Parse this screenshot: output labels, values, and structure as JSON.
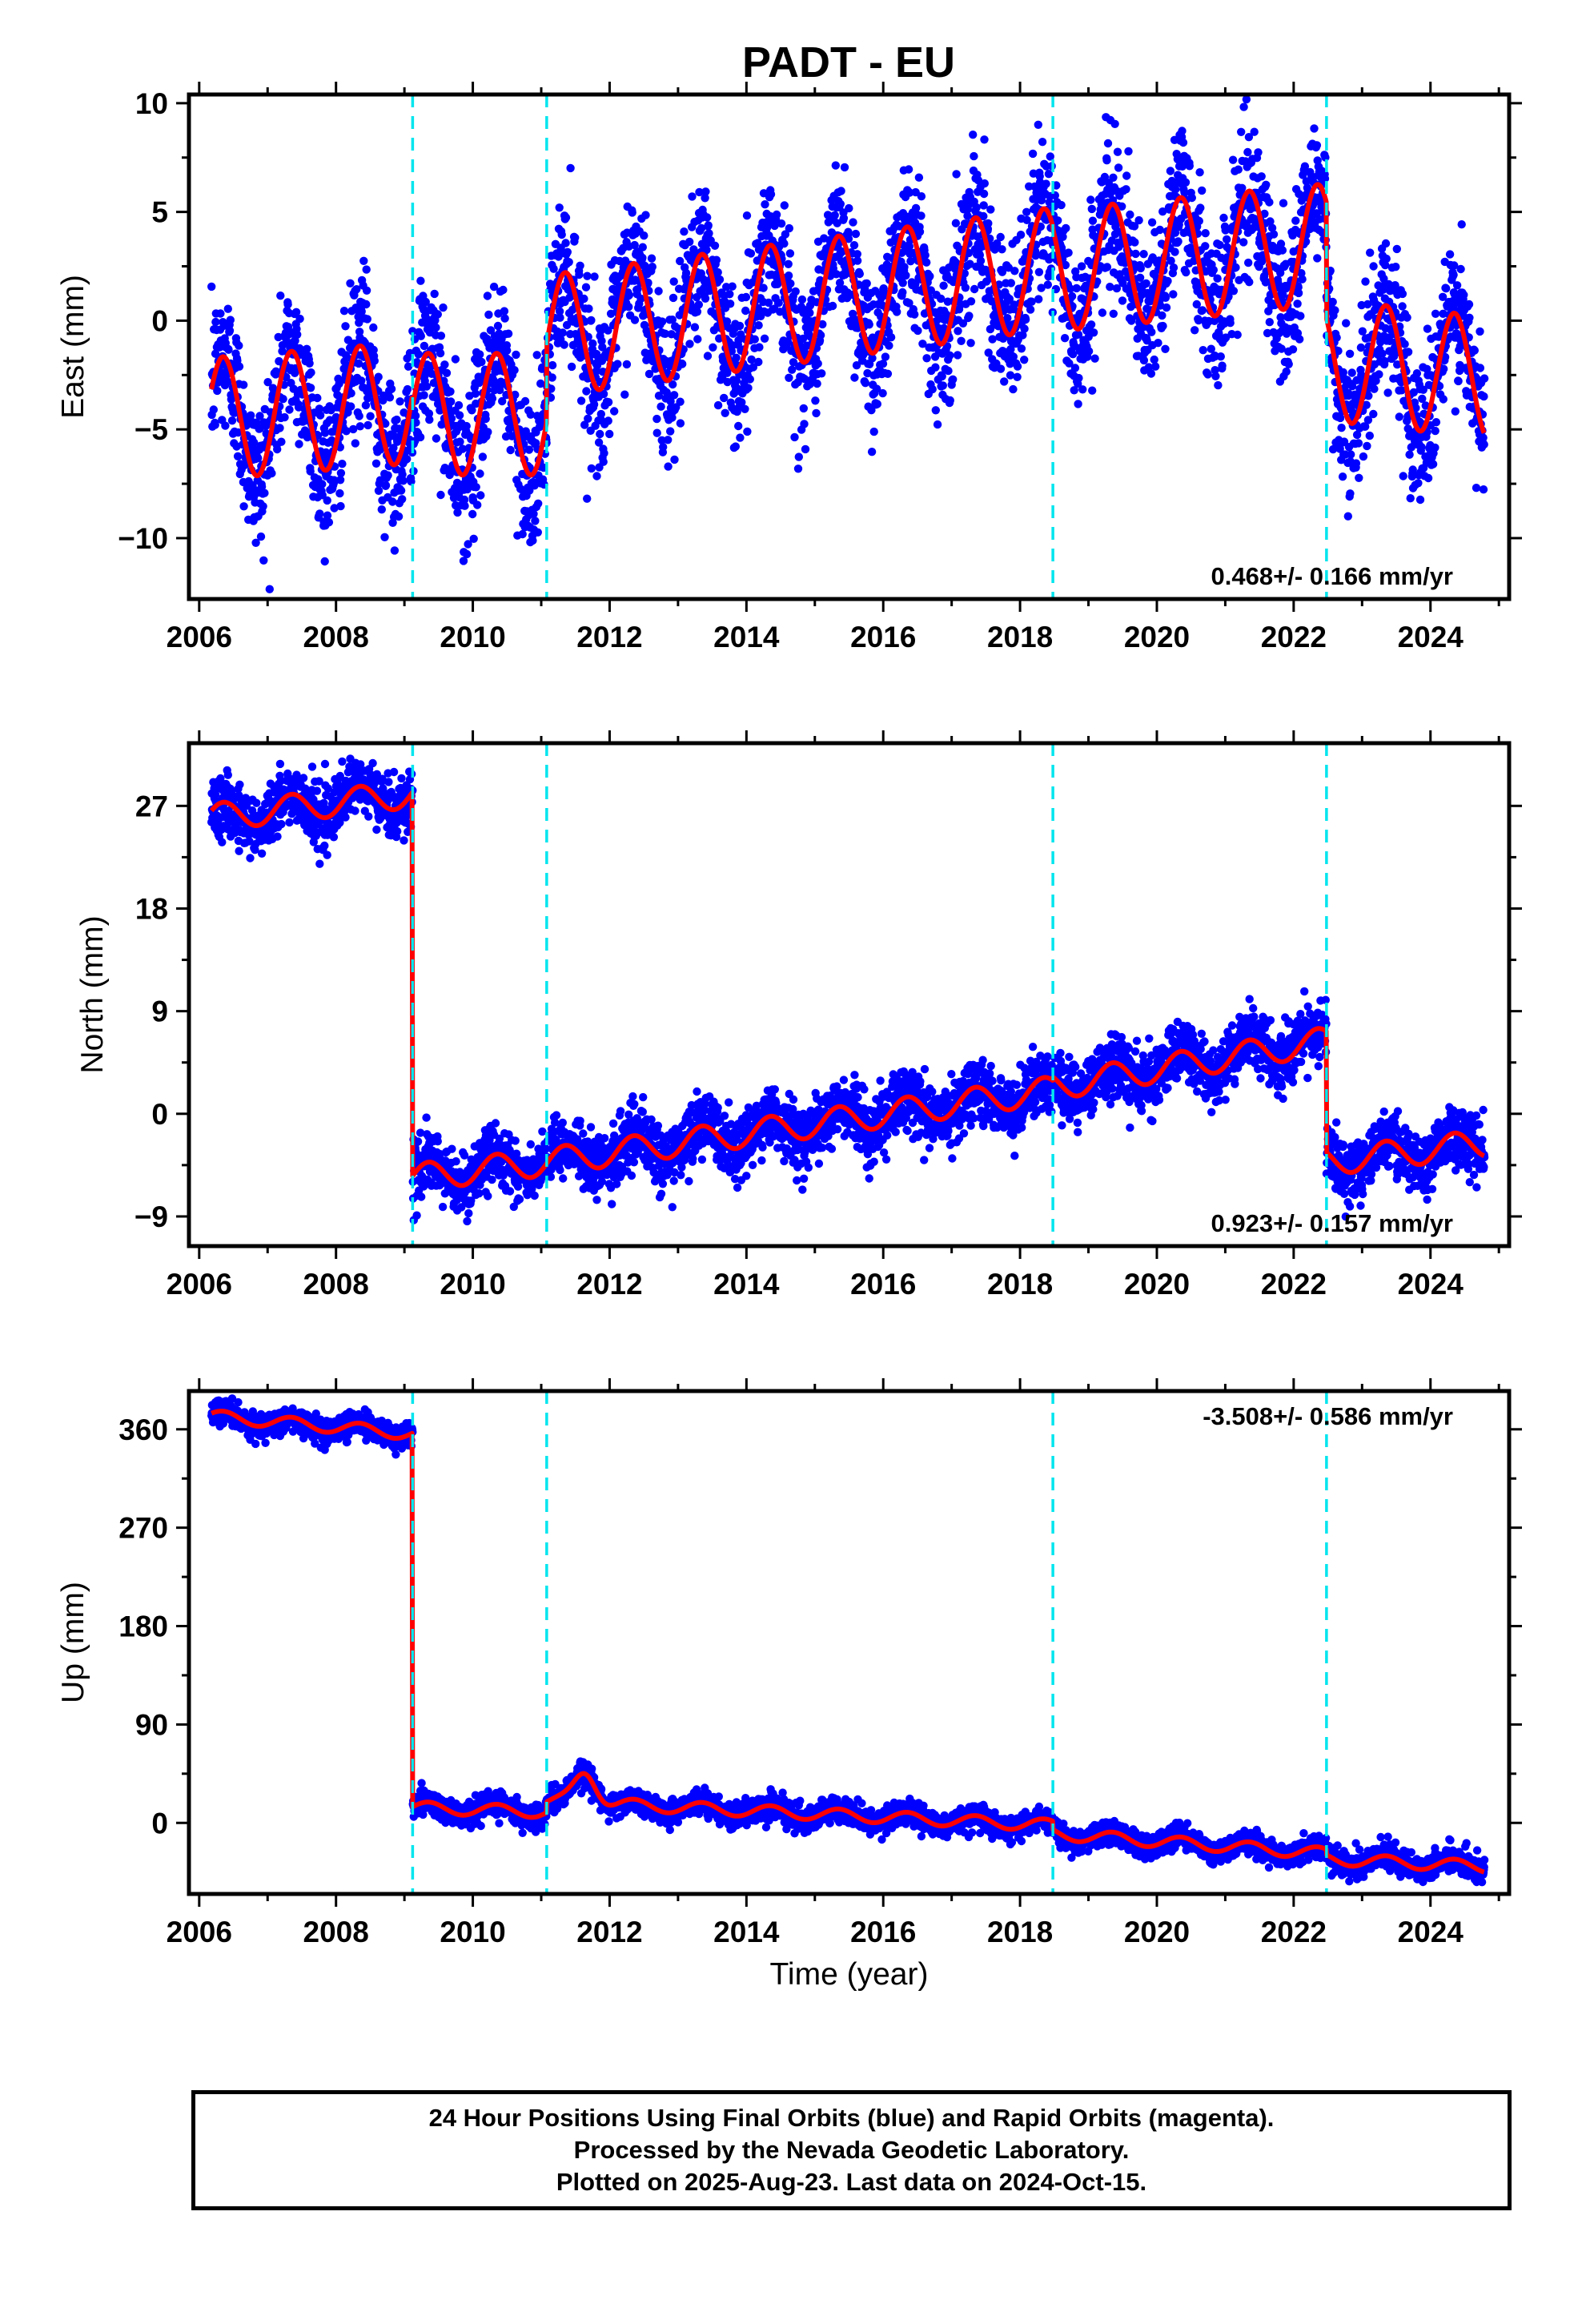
{
  "chart_data": {
    "title": "PADT - EU",
    "type": "scatter",
    "x_unit": "year",
    "xlim": [
      2005.85,
      2025.15
    ],
    "x_ticks": [
      2006,
      2008,
      2010,
      2012,
      2014,
      2016,
      2018,
      2020,
      2022,
      2024
    ],
    "x_tick_labels": [
      "2006",
      "2008",
      "2010",
      "2012",
      "2014",
      "2016",
      "2018",
      "2020",
      "2022",
      "2024"
    ],
    "xlabel": "Time (year)",
    "event_lines": [
      2009.12,
      2011.08,
      2018.48,
      2022.48
    ],
    "colors": {
      "points": "#0000ff",
      "model": "#ff0000",
      "events": "#00e5ee",
      "axes": "#000000"
    },
    "data_start": 2006.18,
    "data_end": 2024.79,
    "panels": [
      {
        "component": "east",
        "ylabel": "East (mm)",
        "ylim": [
          -12.8,
          10.4
        ],
        "y_ticks": [
          -10,
          -5,
          0,
          5,
          10
        ],
        "y_tick_labels": [
          "−10",
          "−5",
          "0",
          "5",
          "10"
        ],
        "rate_label": "0.468+/- 0.166 mm/yr",
        "rate_position": "bottom-right",
        "noise": 1.7,
        "model": {
          "seasonal_amplitude": 2.8,
          "segments": [
            {
              "start": 2006.18,
              "end": 2009.12,
              "offset_at_start": -4.5,
              "trend": 0.25
            },
            {
              "start": 2009.12,
              "end": 2011.08,
              "offset_at_start": -4.3,
              "trend": 0.0
            },
            {
              "start": 2011.08,
              "end": 2018.48,
              "offset_at_start": -0.7,
              "trend": 0.42
            },
            {
              "start": 2018.48,
              "end": 2022.48,
              "offset_at_start": 2.3,
              "trend": 0.3
            },
            {
              "start": 2022.48,
              "end": 2024.79,
              "offset_at_start": -1.8,
              "trend": -0.35
            }
          ]
        }
      },
      {
        "component": "north",
        "ylabel": "North (mm)",
        "ylim": [
          -11.6,
          32.5
        ],
        "y_ticks": [
          -9,
          0,
          9,
          18,
          27
        ],
        "y_tick_labels": [
          "−9",
          "0",
          "9",
          "18",
          "27"
        ],
        "rate_label": "0.923+/- 0.157 mm/yr",
        "rate_position": "bottom-right",
        "noise": 1.3,
        "model": {
          "seasonal_amplitude": 1.2,
          "segments": [
            {
              "start": 2006.18,
              "end": 2009.12,
              "offset_at_start": 26.0,
              "trend": 0.7
            },
            {
              "start": 2009.12,
              "end": 2011.08,
              "offset_at_start": -5.6,
              "trend": 0.7
            },
            {
              "start": 2011.08,
              "end": 2018.48,
              "offset_at_start": -4.2,
              "trend": 0.85
            },
            {
              "start": 2018.48,
              "end": 2022.48,
              "offset_at_start": 2.4,
              "trend": 1.0
            },
            {
              "start": 2022.48,
              "end": 2024.79,
              "offset_at_start": -4.2,
              "trend": 0.7
            }
          ]
        }
      },
      {
        "component": "up",
        "ylabel": "Up (mm)",
        "ylim": [
          -65,
          395
        ],
        "y_ticks": [
          0,
          90,
          180,
          270,
          360
        ],
        "y_tick_labels": [
          "0",
          "90",
          "180",
          "270",
          "360"
        ],
        "rate_label": "-3.508+/- 0.586 mm/yr",
        "rate_position": "top-right",
        "noise": 5.5,
        "model": {
          "seasonal_amplitude": 5.5,
          "segments": [
            {
              "start": 2006.18,
              "end": 2009.12,
              "offset_at_start": 372,
              "trend": -5.5
            },
            {
              "start": 2009.12,
              "end": 2011.08,
              "offset_at_start": 14,
              "trend": -2.0
            },
            {
              "start": 2011.08,
              "end": 2018.48,
              "offset_at_start": 20,
              "trend": -3.0
            },
            {
              "start": 2018.48,
              "end": 2022.48,
              "offset_at_start": -10,
              "trend": -4.5
            },
            {
              "start": 2022.48,
              "end": 2024.79,
              "offset_at_start": -33,
              "trend": -3.0
            }
          ],
          "bumps": [
            {
              "center": 2011.65,
              "width": 0.22,
              "height": 28
            }
          ]
        }
      }
    ]
  },
  "footer": {
    "line1": "24 Hour Positions Using Final Orbits (blue) and Rapid Orbits (magenta).",
    "line2": "Processed by the Nevada Geodetic Laboratory.",
    "line3": "Plotted on 2025-Aug-23. Last data on 2024-Oct-15."
  }
}
